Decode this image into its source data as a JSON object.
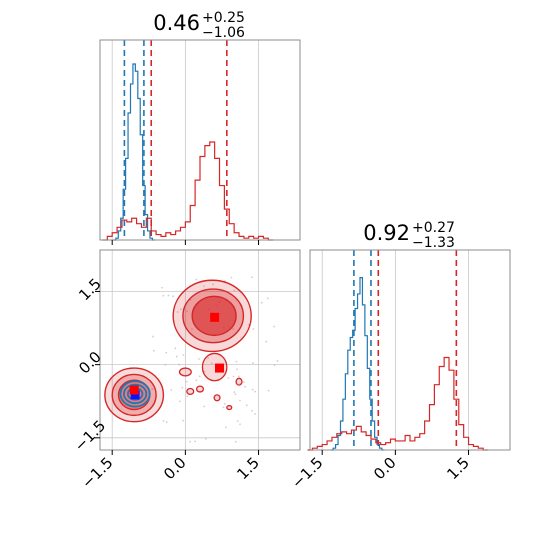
{
  "chart_data": {
    "type": "corner",
    "colors": {
      "blue": "#1f77b4",
      "red": "#d62728",
      "grid": "#c8c8c8",
      "spine": "#8c8c8c"
    },
    "range": [
      -1.75,
      2.35
    ],
    "ticks": [
      -1.5,
      0.0,
      1.5
    ],
    "tick_labels": [
      "−1.5",
      "0.0",
      "1.5"
    ],
    "grid": true,
    "top_panel": {
      "title_value": "0.46",
      "title_sup": "+0.25",
      "title_sub": "−1.06",
      "blue_lines": [
        -1.25,
        -0.85
      ],
      "red_lines": [
        -0.7,
        0.85
      ],
      "blue_hist": [
        {
          "x": -1.45,
          "h": 0.0
        },
        {
          "x": -1.4,
          "h": 0.01
        },
        {
          "x": -1.35,
          "h": 0.05
        },
        {
          "x": -1.3,
          "h": 0.12
        },
        {
          "x": -1.25,
          "h": 0.28
        },
        {
          "x": -1.2,
          "h": 0.45
        },
        {
          "x": -1.15,
          "h": 0.7
        },
        {
          "x": -1.1,
          "h": 0.86
        },
        {
          "x": -1.05,
          "h": 0.97
        },
        {
          "x": -1.0,
          "h": 0.93
        },
        {
          "x": -0.95,
          "h": 0.78
        },
        {
          "x": -0.9,
          "h": 0.58
        },
        {
          "x": -0.85,
          "h": 0.3
        },
        {
          "x": -0.8,
          "h": 0.14
        },
        {
          "x": -0.75,
          "h": 0.05
        },
        {
          "x": -0.7,
          "h": 0.01
        },
        {
          "x": -0.65,
          "h": 0.0
        }
      ],
      "red_hist": [
        {
          "x": -1.65,
          "h": 0.0
        },
        {
          "x": -1.55,
          "h": 0.02
        },
        {
          "x": -1.45,
          "h": 0.04
        },
        {
          "x": -1.35,
          "h": 0.07
        },
        {
          "x": -1.25,
          "h": 0.11
        },
        {
          "x": -1.15,
          "h": 0.1
        },
        {
          "x": -1.05,
          "h": 0.12
        },
        {
          "x": -0.95,
          "h": 0.09
        },
        {
          "x": -0.85,
          "h": 0.07
        },
        {
          "x": -0.75,
          "h": 0.12
        },
        {
          "x": -0.65,
          "h": 0.05
        },
        {
          "x": -0.55,
          "h": 0.03
        },
        {
          "x": -0.45,
          "h": 0.02
        },
        {
          "x": -0.35,
          "h": 0.04
        },
        {
          "x": -0.25,
          "h": 0.03
        },
        {
          "x": -0.15,
          "h": 0.05
        },
        {
          "x": -0.05,
          "h": 0.07
        },
        {
          "x": 0.05,
          "h": 0.1
        },
        {
          "x": 0.15,
          "h": 0.19
        },
        {
          "x": 0.25,
          "h": 0.33
        },
        {
          "x": 0.35,
          "h": 0.46
        },
        {
          "x": 0.45,
          "h": 0.52
        },
        {
          "x": 0.55,
          "h": 0.54
        },
        {
          "x": 0.65,
          "h": 0.45
        },
        {
          "x": 0.75,
          "h": 0.3
        },
        {
          "x": 0.85,
          "h": 0.17
        },
        {
          "x": 0.95,
          "h": 0.09
        },
        {
          "x": 1.05,
          "h": 0.04
        },
        {
          "x": 1.15,
          "h": 0.02
        },
        {
          "x": 1.25,
          "h": 0.01
        },
        {
          "x": 1.35,
          "h": 0.02
        },
        {
          "x": 1.45,
          "h": 0.01
        },
        {
          "x": 1.55,
          "h": 0.02
        },
        {
          "x": 1.65,
          "h": 0.01
        },
        {
          "x": 1.75,
          "h": 0.0
        }
      ]
    },
    "right_panel": {
      "title_value": "0.92",
      "title_sup": "+0.27",
      "title_sub": "−1.33",
      "blue_lines": [
        -0.85,
        -0.5
      ],
      "red_lines": [
        -0.35,
        1.25
      ],
      "blue_hist": [
        {
          "x": -1.3,
          "h": 0.0
        },
        {
          "x": -1.25,
          "h": 0.01
        },
        {
          "x": -1.2,
          "h": 0.03
        },
        {
          "x": -1.15,
          "h": 0.08
        },
        {
          "x": -1.1,
          "h": 0.16
        },
        {
          "x": -1.05,
          "h": 0.28
        },
        {
          "x": -1.0,
          "h": 0.42
        },
        {
          "x": -0.95,
          "h": 0.55
        },
        {
          "x": -0.9,
          "h": 0.62
        },
        {
          "x": -0.85,
          "h": 0.66
        },
        {
          "x": -0.8,
          "h": 0.78
        },
        {
          "x": -0.75,
          "h": 0.86
        },
        {
          "x": -0.7,
          "h": 0.95
        },
        {
          "x": -0.65,
          "h": 0.8
        },
        {
          "x": -0.6,
          "h": 0.63
        },
        {
          "x": -0.55,
          "h": 0.45
        },
        {
          "x": -0.5,
          "h": 0.28
        },
        {
          "x": -0.45,
          "h": 0.16
        },
        {
          "x": -0.4,
          "h": 0.07
        },
        {
          "x": -0.35,
          "h": 0.03
        },
        {
          "x": -0.3,
          "h": 0.01
        },
        {
          "x": -0.25,
          "h": 0.0
        }
      ],
      "red_hist": [
        {
          "x": -1.75,
          "h": 0.0
        },
        {
          "x": -1.65,
          "h": 0.01
        },
        {
          "x": -1.55,
          "h": 0.02
        },
        {
          "x": -1.45,
          "h": 0.03
        },
        {
          "x": -1.35,
          "h": 0.05
        },
        {
          "x": -1.25,
          "h": 0.07
        },
        {
          "x": -1.15,
          "h": 0.09
        },
        {
          "x": -1.05,
          "h": 0.1
        },
        {
          "x": -0.95,
          "h": 0.09
        },
        {
          "x": -0.85,
          "h": 0.11
        },
        {
          "x": -0.75,
          "h": 0.13
        },
        {
          "x": -0.65,
          "h": 0.1
        },
        {
          "x": -0.55,
          "h": 0.08
        },
        {
          "x": -0.45,
          "h": 0.06
        },
        {
          "x": -0.35,
          "h": 0.04
        },
        {
          "x": -0.25,
          "h": 0.03
        },
        {
          "x": -0.15,
          "h": 0.04
        },
        {
          "x": -0.05,
          "h": 0.06
        },
        {
          "x": 0.05,
          "h": 0.05
        },
        {
          "x": 0.15,
          "h": 0.05
        },
        {
          "x": 0.25,
          "h": 0.08
        },
        {
          "x": 0.35,
          "h": 0.05
        },
        {
          "x": 0.45,
          "h": 0.07
        },
        {
          "x": 0.55,
          "h": 0.09
        },
        {
          "x": 0.65,
          "h": 0.16
        },
        {
          "x": 0.75,
          "h": 0.25
        },
        {
          "x": 0.85,
          "h": 0.36
        },
        {
          "x": 0.95,
          "h": 0.46
        },
        {
          "x": 1.05,
          "h": 0.51
        },
        {
          "x": 1.15,
          "h": 0.44
        },
        {
          "x": 1.25,
          "h": 0.28
        },
        {
          "x": 1.35,
          "h": 0.14
        },
        {
          "x": 1.45,
          "h": 0.07
        },
        {
          "x": 1.55,
          "h": 0.03
        },
        {
          "x": 1.65,
          "h": 0.02
        },
        {
          "x": 1.75,
          "h": 0.01
        },
        {
          "x": 1.85,
          "h": 0.0
        }
      ]
    },
    "joint_panel": {
      "blue_contours": [
        {
          "cx": -1.03,
          "cy": -0.6,
          "rx": 0.3,
          "ry": 0.26
        },
        {
          "cx": -1.03,
          "cy": -0.6,
          "rx": 0.23,
          "ry": 0.19
        },
        {
          "cx": -1.03,
          "cy": -0.6,
          "rx": 0.15,
          "ry": 0.12
        }
      ],
      "red_contours": [
        {
          "cx": -1.05,
          "cy": -0.62,
          "rx": 0.6,
          "ry": 0.55,
          "fill": "rgba(214,39,40,0.16)"
        },
        {
          "cx": -1.05,
          "cy": -0.62,
          "rx": 0.45,
          "ry": 0.42,
          "fill": "rgba(214,39,40,0.26)"
        },
        {
          "cx": -1.05,
          "cy": -0.62,
          "rx": 0.32,
          "ry": 0.3,
          "fill": "rgba(214,39,40,0.36)"
        },
        {
          "cx": 0.55,
          "cy": 1.0,
          "rx": 0.8,
          "ry": 0.73,
          "fill": "rgba(214,39,40,0.18)"
        },
        {
          "cx": 0.57,
          "cy": 1.0,
          "rx": 0.62,
          "ry": 0.55,
          "fill": "rgba(214,39,40,0.32)"
        },
        {
          "cx": 0.59,
          "cy": 1.0,
          "rx": 0.45,
          "ry": 0.4,
          "fill": "rgba(214,39,40,0.62)"
        }
      ],
      "red_blobs": [
        {
          "cx": 0.6,
          "cy": -0.05,
          "rx": 0.25,
          "ry": 0.28
        },
        {
          "cx": 0.0,
          "cy": -0.15,
          "rx": 0.12,
          "ry": 0.08
        },
        {
          "cx": 0.1,
          "cy": -0.55,
          "rx": 0.07,
          "ry": 0.06
        },
        {
          "cx": 0.3,
          "cy": -0.5,
          "rx": 0.07,
          "ry": 0.06
        },
        {
          "cx": 0.65,
          "cy": -0.68,
          "rx": 0.06,
          "ry": 0.06
        },
        {
          "cx": 1.1,
          "cy": -0.35,
          "rx": 0.06,
          "ry": 0.07
        },
        {
          "cx": 0.9,
          "cy": -0.88,
          "rx": 0.05,
          "ry": 0.04
        }
      ],
      "markers": [
        {
          "x": -1.03,
          "y": -0.62,
          "color": "#1010ff"
        },
        {
          "x": -1.05,
          "y": -0.52,
          "color": "#ff0000"
        },
        {
          "x": 0.6,
          "y": 0.97,
          "color": "#ff0000"
        },
        {
          "x": 0.7,
          "y": -0.07,
          "color": "#ff0000"
        }
      ]
    }
  }
}
